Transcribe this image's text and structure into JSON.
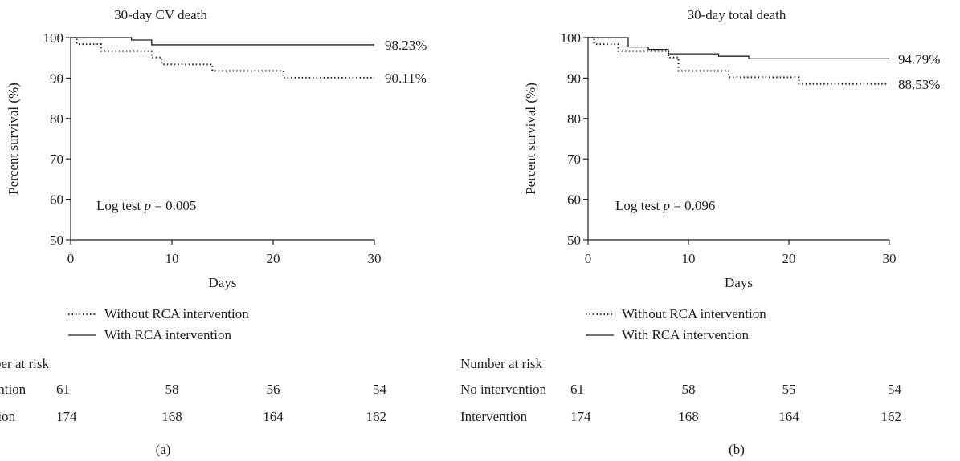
{
  "chart_data": [
    {
      "type": "line",
      "title": "30-day CV death",
      "xlabel": "Days",
      "ylabel": "Percent survival (%)",
      "xlim": [
        0,
        30
      ],
      "ylim": [
        50,
        100
      ],
      "xticks": [
        "0",
        "10",
        "20",
        "30"
      ],
      "yticks": [
        "50",
        "60",
        "70",
        "80",
        "90",
        "100"
      ],
      "annotation": {
        "prefix": "Log test ",
        "italic": "p",
        "suffix": " = 0.005"
      },
      "panel_label": "(a)",
      "series": [
        {
          "name": "Without RCA intervention",
          "style": "dotted",
          "points": [
            [
              0,
              100
            ],
            [
              0.6,
              98.4
            ],
            [
              3,
              96.7
            ],
            [
              8,
              95.1
            ],
            [
              9,
              93.4
            ],
            [
              14,
              91.8
            ],
            [
              21,
              90.11
            ],
            [
              30,
              90.11
            ]
          ],
          "end_label": "90.11%"
        },
        {
          "name": "With RCA intervention",
          "style": "solid",
          "points": [
            [
              0,
              100
            ],
            [
              6,
              99.4
            ],
            [
              8,
              98.23
            ],
            [
              30,
              98.23
            ]
          ],
          "end_label": "98.23%"
        }
      ],
      "risk_table": {
        "header": "Number at risk",
        "rows": [
          {
            "label": "No intervention",
            "values": [
              "61",
              "58",
              "56",
              "54"
            ]
          },
          {
            "label": "Intervention",
            "values": [
              "174",
              "168",
              "164",
              "162"
            ]
          }
        ]
      }
    },
    {
      "type": "line",
      "title": "30-day total death",
      "xlabel": "Days",
      "ylabel": "Percent survival (%)",
      "xlim": [
        0,
        30
      ],
      "ylim": [
        50,
        100
      ],
      "xticks": [
        "0",
        "10",
        "20",
        "30"
      ],
      "yticks": [
        "50",
        "60",
        "70",
        "80",
        "90",
        "100"
      ],
      "annotation": {
        "prefix": "Log test ",
        "italic": "p",
        "suffix": " = 0.096"
      },
      "panel_label": "(b)",
      "series": [
        {
          "name": "Without RCA intervention",
          "style": "dotted",
          "points": [
            [
              0,
              100
            ],
            [
              0.6,
              98.4
            ],
            [
              3,
              96.7
            ],
            [
              8,
              95.1
            ],
            [
              9,
              91.8
            ],
            [
              14,
              90.2
            ],
            [
              21,
              88.53
            ],
            [
              30,
              88.53
            ]
          ],
          "end_label": "88.53%"
        },
        {
          "name": "With RCA intervention",
          "style": "solid",
          "points": [
            [
              0,
              100
            ],
            [
              4,
              97.7
            ],
            [
              6,
              97.1
            ],
            [
              8,
              96
            ],
            [
              13,
              95.4
            ],
            [
              16,
              94.79
            ],
            [
              30,
              94.79
            ]
          ],
          "end_label": "94.79%"
        }
      ],
      "risk_table": {
        "header": "Number at risk",
        "rows": [
          {
            "label": "No intervention",
            "values": [
              "61",
              "58",
              "55",
              "54"
            ]
          },
          {
            "label": "Intervention",
            "values": [
              "174",
              "168",
              "164",
              "162"
            ]
          }
        ]
      }
    }
  ]
}
